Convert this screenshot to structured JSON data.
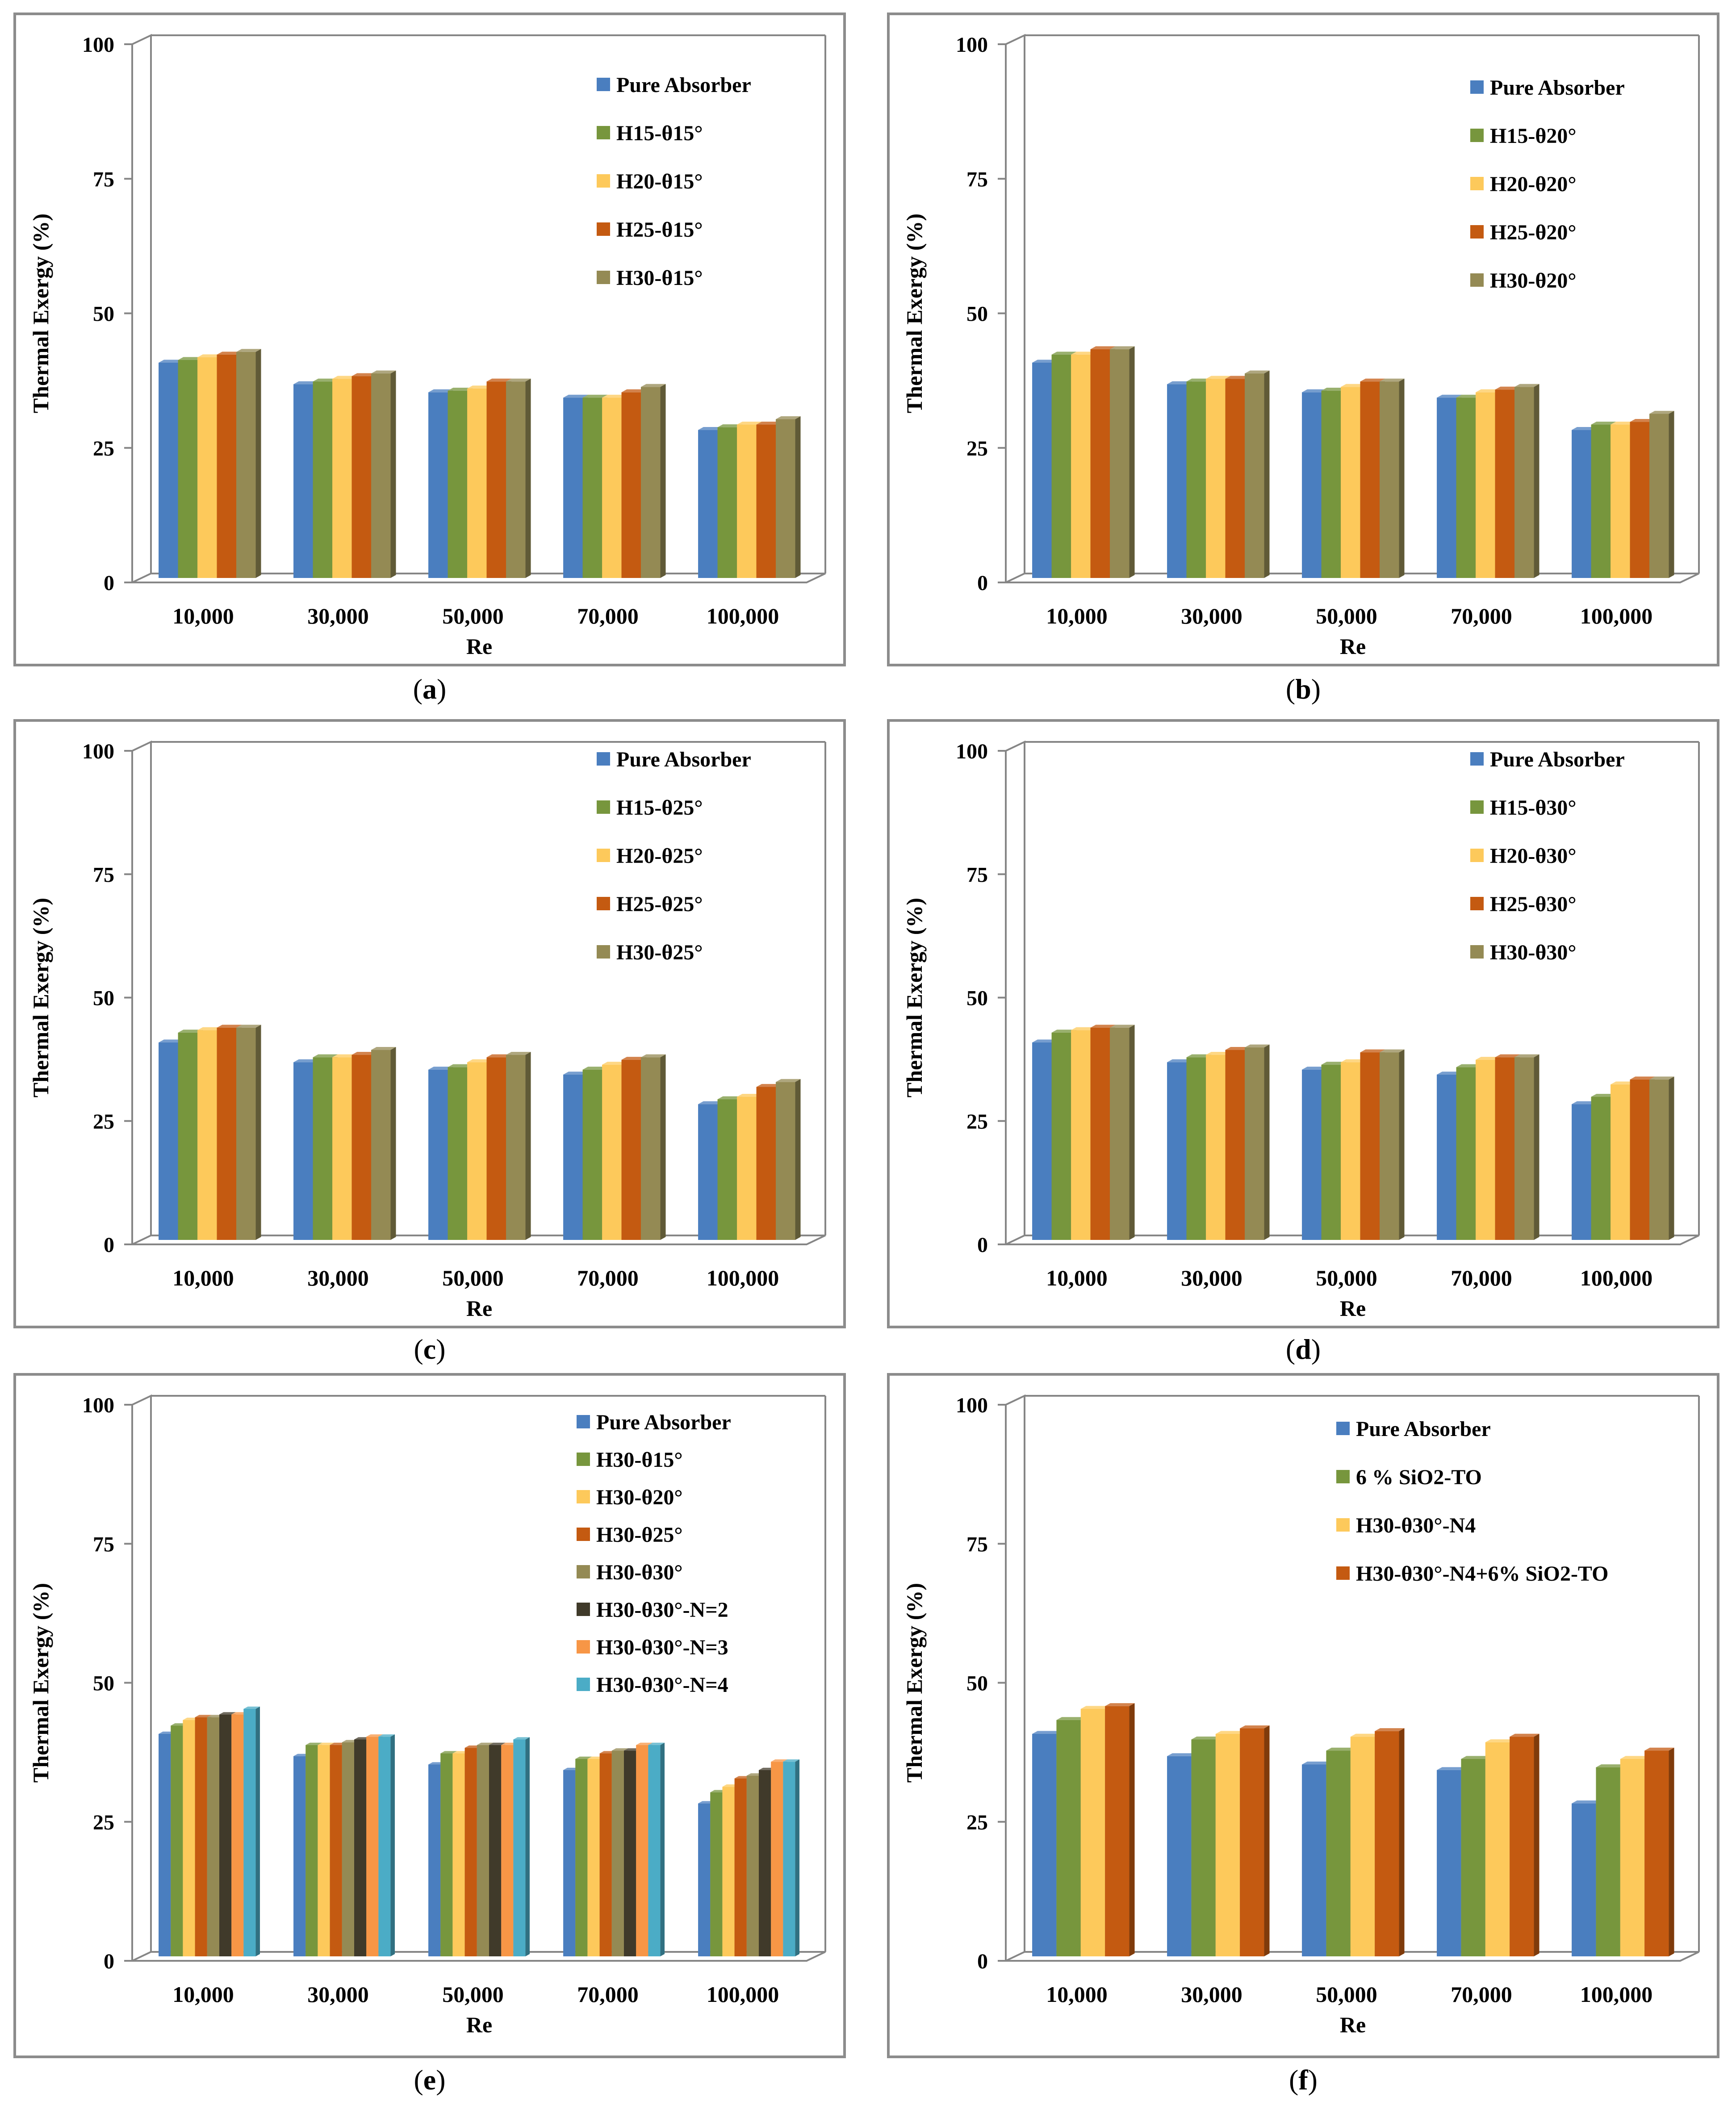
{
  "figure": {
    "captions": [
      "(a)",
      "(b)",
      "(c)",
      "(d)",
      "(e)",
      "(f)"
    ],
    "caption_letters": [
      "a",
      "b",
      "c",
      "d",
      "e",
      "f"
    ]
  },
  "style": {
    "series_colors": [
      "#4a7ebf",
      "#77963d",
      "#fdc95b",
      "#c45a11",
      "#948a54",
      "#403a2a",
      "#f79646",
      "#4bacc6"
    ],
    "axis_color": "#868686",
    "background": "#ffffff"
  },
  "chart_data": [
    {
      "id": "a",
      "type": "bar",
      "title": "",
      "xlabel": "Re",
      "ylabel": "Thermal Exergy (%)",
      "ylim": [
        0,
        100
      ],
      "yticks": [
        "0",
        "25",
        "50",
        "75",
        "100"
      ],
      "categories": [
        "10,000",
        "30,000",
        "50,000",
        "70,000",
        "100,000"
      ],
      "legend_position": "top-right",
      "series": [
        {
          "name": "Pure Absorber",
          "values": [
            40,
            36,
            34.5,
            33.5,
            27.5
          ]
        },
        {
          "name": "H15-θ15°",
          "values": [
            40.5,
            36.5,
            34.8,
            33.5,
            28
          ]
        },
        {
          "name": "H20-θ15°",
          "values": [
            41,
            37,
            35.2,
            33.5,
            28.5
          ]
        },
        {
          "name": "H25-θ15°",
          "values": [
            41.5,
            37.5,
            36.5,
            34.5,
            28.5
          ]
        },
        {
          "name": "H30-θ15°",
          "values": [
            42,
            38,
            36.5,
            35.5,
            29.5
          ]
        }
      ]
    },
    {
      "id": "b",
      "type": "bar",
      "title": "",
      "xlabel": "Re",
      "ylabel": "Thermal Exergy (%)",
      "ylim": [
        0,
        100
      ],
      "yticks": [
        "0",
        "25",
        "50",
        "75",
        "100"
      ],
      "categories": [
        "10,000",
        "30,000",
        "50,000",
        "70,000",
        "100,000"
      ],
      "legend_position": "top-right",
      "series": [
        {
          "name": "Pure Absorber",
          "values": [
            40,
            36,
            34.5,
            33.5,
            27.5
          ]
        },
        {
          "name": "H15-θ20°",
          "values": [
            41.5,
            36.5,
            34.8,
            33.5,
            28.5
          ]
        },
        {
          "name": "H20-θ20°",
          "values": [
            41.5,
            37,
            35.5,
            34.5,
            28.5
          ]
        },
        {
          "name": "H25-θ20°",
          "values": [
            42.5,
            37,
            36.5,
            35,
            29
          ]
        },
        {
          "name": "H30-θ20°",
          "values": [
            42.5,
            38,
            36.5,
            35.5,
            30.5
          ]
        }
      ]
    },
    {
      "id": "c",
      "type": "bar",
      "title": "",
      "xlabel": "Re",
      "ylabel": "Thermal Exergy (%)",
      "ylim": [
        0,
        100
      ],
      "yticks": [
        "0",
        "25",
        "50",
        "75",
        "100"
      ],
      "categories": [
        "10,000",
        "30,000",
        "50,000",
        "70,000",
        "100,000"
      ],
      "legend_position": "top-right",
      "series": [
        {
          "name": "Pure Absorber",
          "values": [
            40,
            36,
            34.5,
            33.5,
            27.5
          ]
        },
        {
          "name": "H15-θ25°",
          "values": [
            42,
            37,
            35,
            34.5,
            28.5
          ]
        },
        {
          "name": "H20-θ25°",
          "values": [
            42.5,
            37,
            36,
            35.5,
            29
          ]
        },
        {
          "name": "H25-θ25°",
          "values": [
            43,
            37.5,
            37,
            36.5,
            31
          ]
        },
        {
          "name": "H30-θ25°",
          "values": [
            43,
            38.5,
            37.5,
            37,
            32
          ]
        }
      ]
    },
    {
      "id": "d",
      "type": "bar",
      "title": "",
      "xlabel": "Re",
      "ylabel": "Thermal Exergy (%)",
      "ylim": [
        0,
        100
      ],
      "yticks": [
        "0",
        "25",
        "50",
        "75",
        "100"
      ],
      "categories": [
        "10,000",
        "30,000",
        "50,000",
        "70,000",
        "100,000"
      ],
      "legend_position": "top-right",
      "series": [
        {
          "name": "Pure Absorber",
          "values": [
            40,
            36,
            34.5,
            33.5,
            27.5
          ]
        },
        {
          "name": "H15-θ30°",
          "values": [
            42,
            37,
            35.5,
            35,
            29
          ]
        },
        {
          "name": "H20-θ30°",
          "values": [
            42.5,
            37.5,
            36,
            36.5,
            31.5
          ]
        },
        {
          "name": "H25-θ30°",
          "values": [
            43,
            38.5,
            38,
            37,
            32.5
          ]
        },
        {
          "name": "H30-θ30°",
          "values": [
            43,
            39,
            38,
            37,
            32.5
          ]
        }
      ]
    },
    {
      "id": "e",
      "type": "bar",
      "title": "",
      "xlabel": "Re",
      "ylabel": "Thermal Exergy (%)",
      "ylim": [
        0,
        100
      ],
      "yticks": [
        "0",
        "25",
        "50",
        "75",
        "100"
      ],
      "categories": [
        "10,000",
        "30,000",
        "50,000",
        "70,000",
        "100,000"
      ],
      "legend_position": "top-right",
      "series": [
        {
          "name": "Pure Absorber",
          "values": [
            40,
            36,
            34.5,
            33.5,
            27.5
          ]
        },
        {
          "name": "H30-θ15°",
          "values": [
            41.5,
            38,
            36.5,
            35.5,
            29.5
          ]
        },
        {
          "name": "H30-θ20°",
          "values": [
            42.5,
            38,
            36.5,
            35.5,
            30.5
          ]
        },
        {
          "name": "H30-θ25°",
          "values": [
            43,
            38,
            37.5,
            36.5,
            32
          ]
        },
        {
          "name": "H30-θ30°",
          "values": [
            43,
            38.5,
            38,
            37,
            32.5
          ]
        },
        {
          "name": "H30-θ30°-N=2",
          "values": [
            43.5,
            39,
            38,
            37,
            33.5
          ]
        },
        {
          "name": "H30-θ30°-N=3",
          "values": [
            43.5,
            39.5,
            38,
            38,
            35
          ]
        },
        {
          "name": "H30-θ30°-N=4",
          "values": [
            44.5,
            39.5,
            39,
            38,
            35
          ]
        }
      ]
    },
    {
      "id": "f",
      "type": "bar",
      "title": "",
      "xlabel": "Re",
      "ylabel": "Thermal Exergy (%)",
      "ylim": [
        0,
        100
      ],
      "yticks": [
        "0",
        "25",
        "50",
        "75",
        "100"
      ],
      "categories": [
        "10,000",
        "30,000",
        "50,000",
        "70,000",
        "100,000"
      ],
      "legend_position": "top-right",
      "series": [
        {
          "name": "Pure Absorber",
          "values": [
            40,
            36,
            34.5,
            33.5,
            27.5
          ]
        },
        {
          "name": "6 % SiO2-TO",
          "values": [
            42.5,
            39,
            37,
            35.5,
            34
          ]
        },
        {
          "name": "H30-θ30°-N4",
          "values": [
            44.5,
            40,
            39.5,
            38.5,
            35.5
          ]
        },
        {
          "name": "H30-θ30°-N4+6% SiO2-TO",
          "values": [
            45,
            41,
            40.5,
            39.5,
            37
          ]
        }
      ]
    }
  ]
}
